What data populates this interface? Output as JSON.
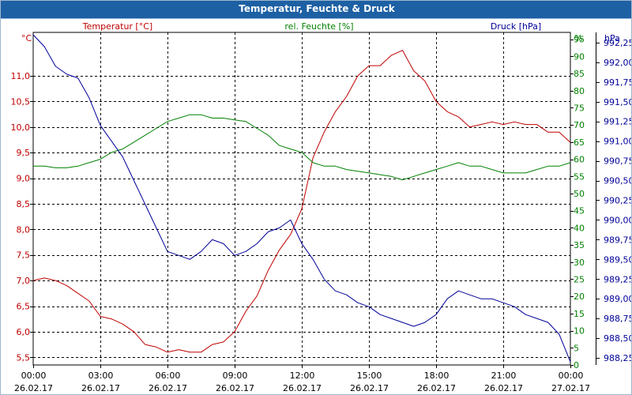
{
  "window": {
    "title": "Temperatur, Feuchte & Druck"
  },
  "colors": {
    "title_bar": "#1d60a3",
    "temperature": "#c00000",
    "humidity": "#008000",
    "pressure": "#000099",
    "grid": "#000000"
  },
  "chart_data": {
    "type": "line",
    "title": "Temperatur, Feuchte & Druck",
    "grid": true,
    "x": {
      "label": "",
      "range": [
        0,
        24
      ],
      "ticks": [
        0,
        3,
        6,
        9,
        12,
        15,
        18,
        21,
        24
      ],
      "tick_labels": [
        [
          "00:00",
          "26.02.17"
        ],
        [
          "03:00",
          "26.02.17"
        ],
        [
          "06:00",
          "26.02.17"
        ],
        [
          "09:00",
          "26.02.17"
        ],
        [
          "12:00",
          "26.02.17"
        ],
        [
          "15:00",
          "26.02.17"
        ],
        [
          "18:00",
          "26.02.17"
        ],
        [
          "21:00",
          "26.02.17"
        ],
        [
          "00:00",
          "27.02.17"
        ]
      ]
    },
    "axes": [
      {
        "id": "temperature",
        "side": "left",
        "unit": "°C",
        "range": [
          5.35,
          11.85
        ],
        "ticks": [
          5.5,
          6.0,
          6.5,
          7.0,
          7.5,
          8.0,
          8.5,
          9.0,
          9.5,
          10.0,
          10.5,
          11.0
        ],
        "tick_labels": [
          "5,5",
          "6,0",
          "6,5",
          "7,0",
          "7,5",
          "8,0",
          "8,5",
          "9,0",
          "9,5",
          "10,0",
          "10,5",
          "11,0"
        ]
      },
      {
        "id": "humidity",
        "side": "right",
        "unit": "%",
        "range": [
          0,
          97
        ],
        "ticks": [
          0,
          5,
          10,
          15,
          20,
          25,
          30,
          35,
          40,
          45,
          50,
          55,
          60,
          65,
          70,
          75,
          80,
          85,
          90,
          95
        ],
        "tick_labels": [
          "0",
          "5",
          "10",
          "15",
          "20",
          "25",
          "30",
          "35",
          "40",
          "45",
          "50",
          "55",
          "60",
          "65",
          "70",
          "75",
          "80",
          "85",
          "90",
          "95"
        ]
      },
      {
        "id": "pressure",
        "side": "right-outer",
        "unit": "hPa",
        "range": [
          988.16,
          992.38
        ],
        "ticks": [
          988.25,
          988.5,
          988.75,
          989.0,
          989.25,
          989.5,
          989.75,
          990.0,
          990.25,
          990.5,
          990.75,
          991.0,
          991.25,
          991.5,
          991.75,
          992.0,
          992.25
        ],
        "tick_labels": [
          "988,25",
          "988,50",
          "988,75",
          "989,00",
          "989,25",
          "989,50",
          "989,75",
          "990,00",
          "990,25",
          "990,50",
          "990,75",
          "991,00",
          "991,25",
          "991,50",
          "991,75",
          "992,00",
          "992,25"
        ]
      }
    ],
    "series": [
      {
        "name": "Temperatur [°C]",
        "axis": "temperature",
        "color": "#c00000",
        "points": [
          [
            0,
            7.0
          ],
          [
            0.5,
            7.05
          ],
          [
            1.0,
            7.0
          ],
          [
            1.5,
            6.9
          ],
          [
            2.0,
            6.75
          ],
          [
            2.5,
            6.6
          ],
          [
            3.0,
            6.3
          ],
          [
            3.5,
            6.25
          ],
          [
            4.0,
            6.15
          ],
          [
            4.5,
            6.0
          ],
          [
            5.0,
            5.75
          ],
          [
            5.5,
            5.7
          ],
          [
            6.0,
            5.6
          ],
          [
            6.5,
            5.65
          ],
          [
            7.0,
            5.6
          ],
          [
            7.5,
            5.6
          ],
          [
            8.0,
            5.75
          ],
          [
            8.5,
            5.8
          ],
          [
            9.0,
            6.0
          ],
          [
            9.5,
            6.4
          ],
          [
            10.0,
            6.7
          ],
          [
            10.5,
            7.2
          ],
          [
            11.0,
            7.6
          ],
          [
            11.5,
            7.9
          ],
          [
            12.0,
            8.4
          ],
          [
            12.5,
            9.4
          ],
          [
            13.0,
            9.9
          ],
          [
            13.5,
            10.3
          ],
          [
            14.0,
            10.6
          ],
          [
            14.5,
            11.0
          ],
          [
            15.0,
            11.2
          ],
          [
            15.5,
            11.2
          ],
          [
            16.0,
            11.4
          ],
          [
            16.5,
            11.5
          ],
          [
            17.0,
            11.1
          ],
          [
            17.5,
            10.9
          ],
          [
            18.0,
            10.5
          ],
          [
            18.5,
            10.3
          ],
          [
            19.0,
            10.2
          ],
          [
            19.5,
            10.0
          ],
          [
            20.0,
            10.05
          ],
          [
            20.5,
            10.1
          ],
          [
            21.0,
            10.05
          ],
          [
            21.5,
            10.1
          ],
          [
            22.0,
            10.05
          ],
          [
            22.5,
            10.05
          ],
          [
            23.0,
            9.9
          ],
          [
            23.5,
            9.9
          ],
          [
            24.0,
            9.7
          ]
        ]
      },
      {
        "name": "rel. Feuchte [%]",
        "axis": "humidity",
        "color": "#008000",
        "points": [
          [
            0,
            58
          ],
          [
            0.5,
            58
          ],
          [
            1.0,
            57.5
          ],
          [
            1.5,
            57.5
          ],
          [
            2.0,
            58
          ],
          [
            2.5,
            59
          ],
          [
            3.0,
            60
          ],
          [
            3.5,
            62
          ],
          [
            4.0,
            63
          ],
          [
            4.5,
            65
          ],
          [
            5.0,
            67
          ],
          [
            5.5,
            69
          ],
          [
            6.0,
            71
          ],
          [
            6.5,
            72
          ],
          [
            7.0,
            73
          ],
          [
            7.5,
            73
          ],
          [
            8.0,
            72
          ],
          [
            8.5,
            72
          ],
          [
            9.0,
            71.5
          ],
          [
            9.5,
            71
          ],
          [
            10.0,
            69
          ],
          [
            10.5,
            67
          ],
          [
            11.0,
            64
          ],
          [
            11.5,
            63
          ],
          [
            12.0,
            62
          ],
          [
            12.5,
            59
          ],
          [
            13.0,
            58
          ],
          [
            13.5,
            58
          ],
          [
            14.0,
            57
          ],
          [
            14.5,
            56.5
          ],
          [
            15.0,
            56
          ],
          [
            15.5,
            55.5
          ],
          [
            16.0,
            55
          ],
          [
            16.5,
            54
          ],
          [
            17.0,
            55
          ],
          [
            17.5,
            56
          ],
          [
            18.0,
            57
          ],
          [
            18.5,
            58
          ],
          [
            19.0,
            59
          ],
          [
            19.5,
            58
          ],
          [
            20.0,
            58
          ],
          [
            20.5,
            57
          ],
          [
            21.0,
            56
          ],
          [
            21.5,
            56
          ],
          [
            22.0,
            56
          ],
          [
            22.5,
            57
          ],
          [
            23.0,
            58
          ],
          [
            23.5,
            58
          ],
          [
            24.0,
            59
          ]
        ]
      },
      {
        "name": "Druck [hPa]",
        "axis": "pressure",
        "color": "#000099",
        "points": [
          [
            0,
            992.35
          ],
          [
            0.5,
            992.2
          ],
          [
            1.0,
            991.95
          ],
          [
            1.5,
            991.85
          ],
          [
            2.0,
            991.8
          ],
          [
            2.5,
            991.55
          ],
          [
            3.0,
            991.2
          ],
          [
            3.5,
            991.0
          ],
          [
            4.0,
            990.8
          ],
          [
            4.5,
            990.5
          ],
          [
            5.0,
            990.2
          ],
          [
            5.5,
            989.9
          ],
          [
            6.0,
            989.6
          ],
          [
            6.5,
            989.55
          ],
          [
            7.0,
            989.5
          ],
          [
            7.5,
            989.6
          ],
          [
            8.0,
            989.75
          ],
          [
            8.5,
            989.7
          ],
          [
            9.0,
            989.55
          ],
          [
            9.5,
            989.6
          ],
          [
            10.0,
            989.7
          ],
          [
            10.5,
            989.85
          ],
          [
            11.0,
            989.9
          ],
          [
            11.5,
            990.0
          ],
          [
            12.0,
            989.7
          ],
          [
            12.5,
            989.5
          ],
          [
            13.0,
            989.25
          ],
          [
            13.5,
            989.1
          ],
          [
            14.0,
            989.05
          ],
          [
            14.5,
            988.95
          ],
          [
            15.0,
            988.9
          ],
          [
            15.5,
            988.8
          ],
          [
            16.0,
            988.75
          ],
          [
            16.5,
            988.7
          ],
          [
            17.0,
            988.65
          ],
          [
            17.5,
            988.7
          ],
          [
            18.0,
            988.8
          ],
          [
            18.5,
            989.0
          ],
          [
            19.0,
            989.1
          ],
          [
            19.5,
            989.05
          ],
          [
            20.0,
            989.0
          ],
          [
            20.5,
            989.0
          ],
          [
            21.0,
            988.95
          ],
          [
            21.5,
            988.9
          ],
          [
            22.0,
            988.8
          ],
          [
            22.5,
            988.75
          ],
          [
            23.0,
            988.7
          ],
          [
            23.5,
            988.55
          ],
          [
            24.0,
            988.2
          ]
        ]
      }
    ]
  }
}
